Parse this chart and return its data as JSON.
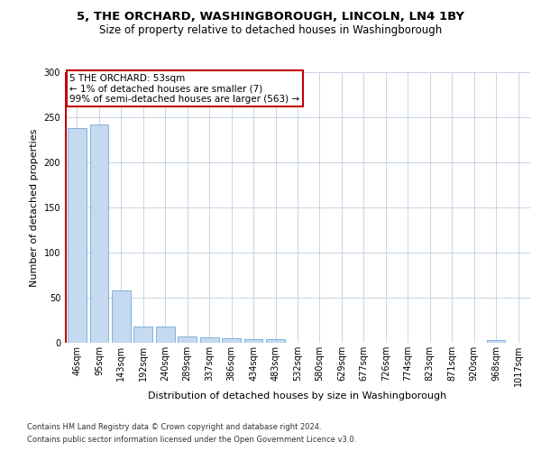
{
  "title": "5, THE ORCHARD, WASHINGBOROUGH, LINCOLN, LN4 1BY",
  "subtitle": "Size of property relative to detached houses in Washingborough",
  "xlabel": "Distribution of detached houses by size in Washingborough",
  "ylabel": "Number of detached properties",
  "bar_color": "#c5d9f0",
  "bar_edge_color": "#5b9bd5",
  "highlight_line_color": "#c00000",
  "background_color": "#ffffff",
  "grid_color": "#c8d4e3",
  "categories": [
    "46sqm",
    "95sqm",
    "143sqm",
    "192sqm",
    "240sqm",
    "289sqm",
    "337sqm",
    "386sqm",
    "434sqm",
    "483sqm",
    "532sqm",
    "580sqm",
    "629sqm",
    "677sqm",
    "726sqm",
    "774sqm",
    "823sqm",
    "871sqm",
    "920sqm",
    "968sqm",
    "1017sqm"
  ],
  "values": [
    238,
    242,
    58,
    18,
    18,
    7,
    6,
    5,
    4,
    4,
    0,
    0,
    0,
    0,
    0,
    0,
    0,
    0,
    0,
    3,
    0
  ],
  "ylim": [
    0,
    300
  ],
  "yticks": [
    0,
    50,
    100,
    150,
    200,
    250,
    300
  ],
  "annotation_text": "5 THE ORCHARD: 53sqm\n← 1% of detached houses are smaller (7)\n99% of semi-detached houses are larger (563) →",
  "footer_line1": "Contains HM Land Registry data © Crown copyright and database right 2024.",
  "footer_line2": "Contains public sector information licensed under the Open Government Licence v3.0.",
  "title_fontsize": 9.5,
  "subtitle_fontsize": 8.5,
  "ylabel_fontsize": 8,
  "xlabel_fontsize": 8,
  "tick_fontsize": 7,
  "annotation_fontsize": 7.5,
  "footer_fontsize": 6
}
